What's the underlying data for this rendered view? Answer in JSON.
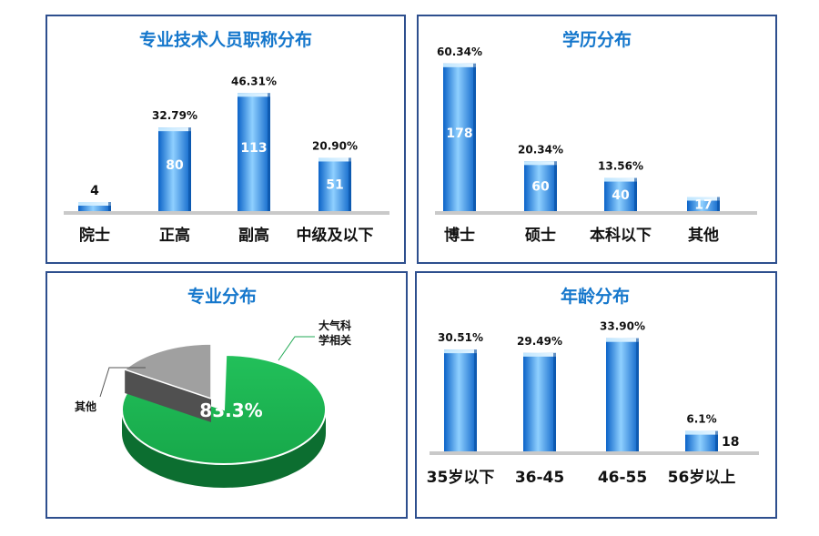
{
  "colors": {
    "border": "#2e4f8e",
    "title": "#1577cc",
    "bar_light": "#8fd0ff",
    "bar_dark": "#0b63c8",
    "pie_green": "#17a84a",
    "pie_green_dark": "#0c6e30",
    "pie_gray": "#a0a0a0",
    "pie_gray_dark": "#505050"
  },
  "chart_data": [
    {
      "type": "bar",
      "title": "专业技术人员职称分布",
      "categories": [
        "院士",
        "正高",
        "副高",
        "中级及以下"
      ],
      "values": [
        4,
        80,
        113,
        51
      ],
      "percent_labels": [
        "",
        "32.79%",
        "46.31%",
        "20.90%"
      ],
      "value_label_inside": [
        false,
        true,
        true,
        true
      ],
      "ylim": [
        0,
        115
      ],
      "grid": false
    },
    {
      "type": "bar",
      "title": "学历分布",
      "categories": [
        "博士",
        "硕士",
        "本科以下",
        "其他"
      ],
      "values": [
        178,
        60,
        40,
        17
      ],
      "percent_labels": [
        "60.34%",
        "20.34%",
        "13.56%",
        ""
      ],
      "value_label_inside": [
        true,
        true,
        true,
        true
      ],
      "ylim": [
        0,
        180
      ],
      "grid": false
    },
    {
      "type": "pie",
      "title": "专业分布",
      "slices": [
        {
          "label": "大气科学相关",
          "label_lines": [
            "大气科",
            "学相关"
          ],
          "value": 83.3,
          "pct_label": "83.3%"
        },
        {
          "label": "其他",
          "label_lines": [
            "其他"
          ],
          "value": 16.7,
          "pct_label": ""
        }
      ]
    },
    {
      "type": "bar",
      "title": "年龄分布",
      "categories": [
        "35岁以下",
        "36-45",
        "46-55",
        "56岁以上"
      ],
      "values": [
        30.51,
        29.49,
        33.9,
        6.1
      ],
      "percent_labels": [
        "30.51%",
        "29.49%",
        "33.90%",
        "6.1%"
      ],
      "side_labels": [
        "",
        "",
        "",
        "18"
      ],
      "ylim": [
        0,
        36
      ],
      "grid": false
    }
  ]
}
